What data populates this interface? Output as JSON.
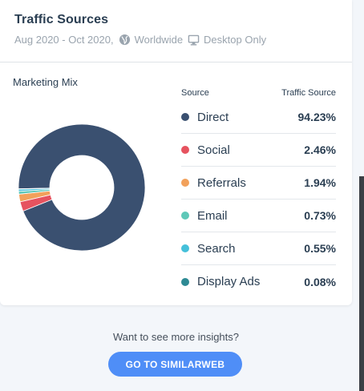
{
  "header": {
    "title": "Traffic Sources",
    "date_range": "Aug 2020 - Oct 2020,",
    "region": "Worldwide",
    "device": "Desktop Only"
  },
  "section_title": "Marketing Mix",
  "table": {
    "col_source": "Source",
    "col_value": "Traffic Source"
  },
  "chart_data": {
    "type": "pie",
    "categories": [
      "Direct",
      "Social",
      "Referrals",
      "Email",
      "Search",
      "Display Ads"
    ],
    "values": [
      94.23,
      2.46,
      1.94,
      0.73,
      0.55,
      0.08
    ],
    "labels": [
      "94.23%",
      "2.46%",
      "1.94%",
      "0.73%",
      "0.55%",
      "0.08%"
    ],
    "colors": [
      "#3a5070",
      "#e6535f",
      "#f2a15b",
      "#5ec8b8",
      "#45c0da",
      "#2e8a94"
    ],
    "donut": true,
    "legend": "right"
  },
  "cta": {
    "text": "Want to see more insights?",
    "button": "GO TO SIMILARWEB"
  },
  "icons": {
    "region": "globe-icon",
    "device": "monitor-icon"
  }
}
